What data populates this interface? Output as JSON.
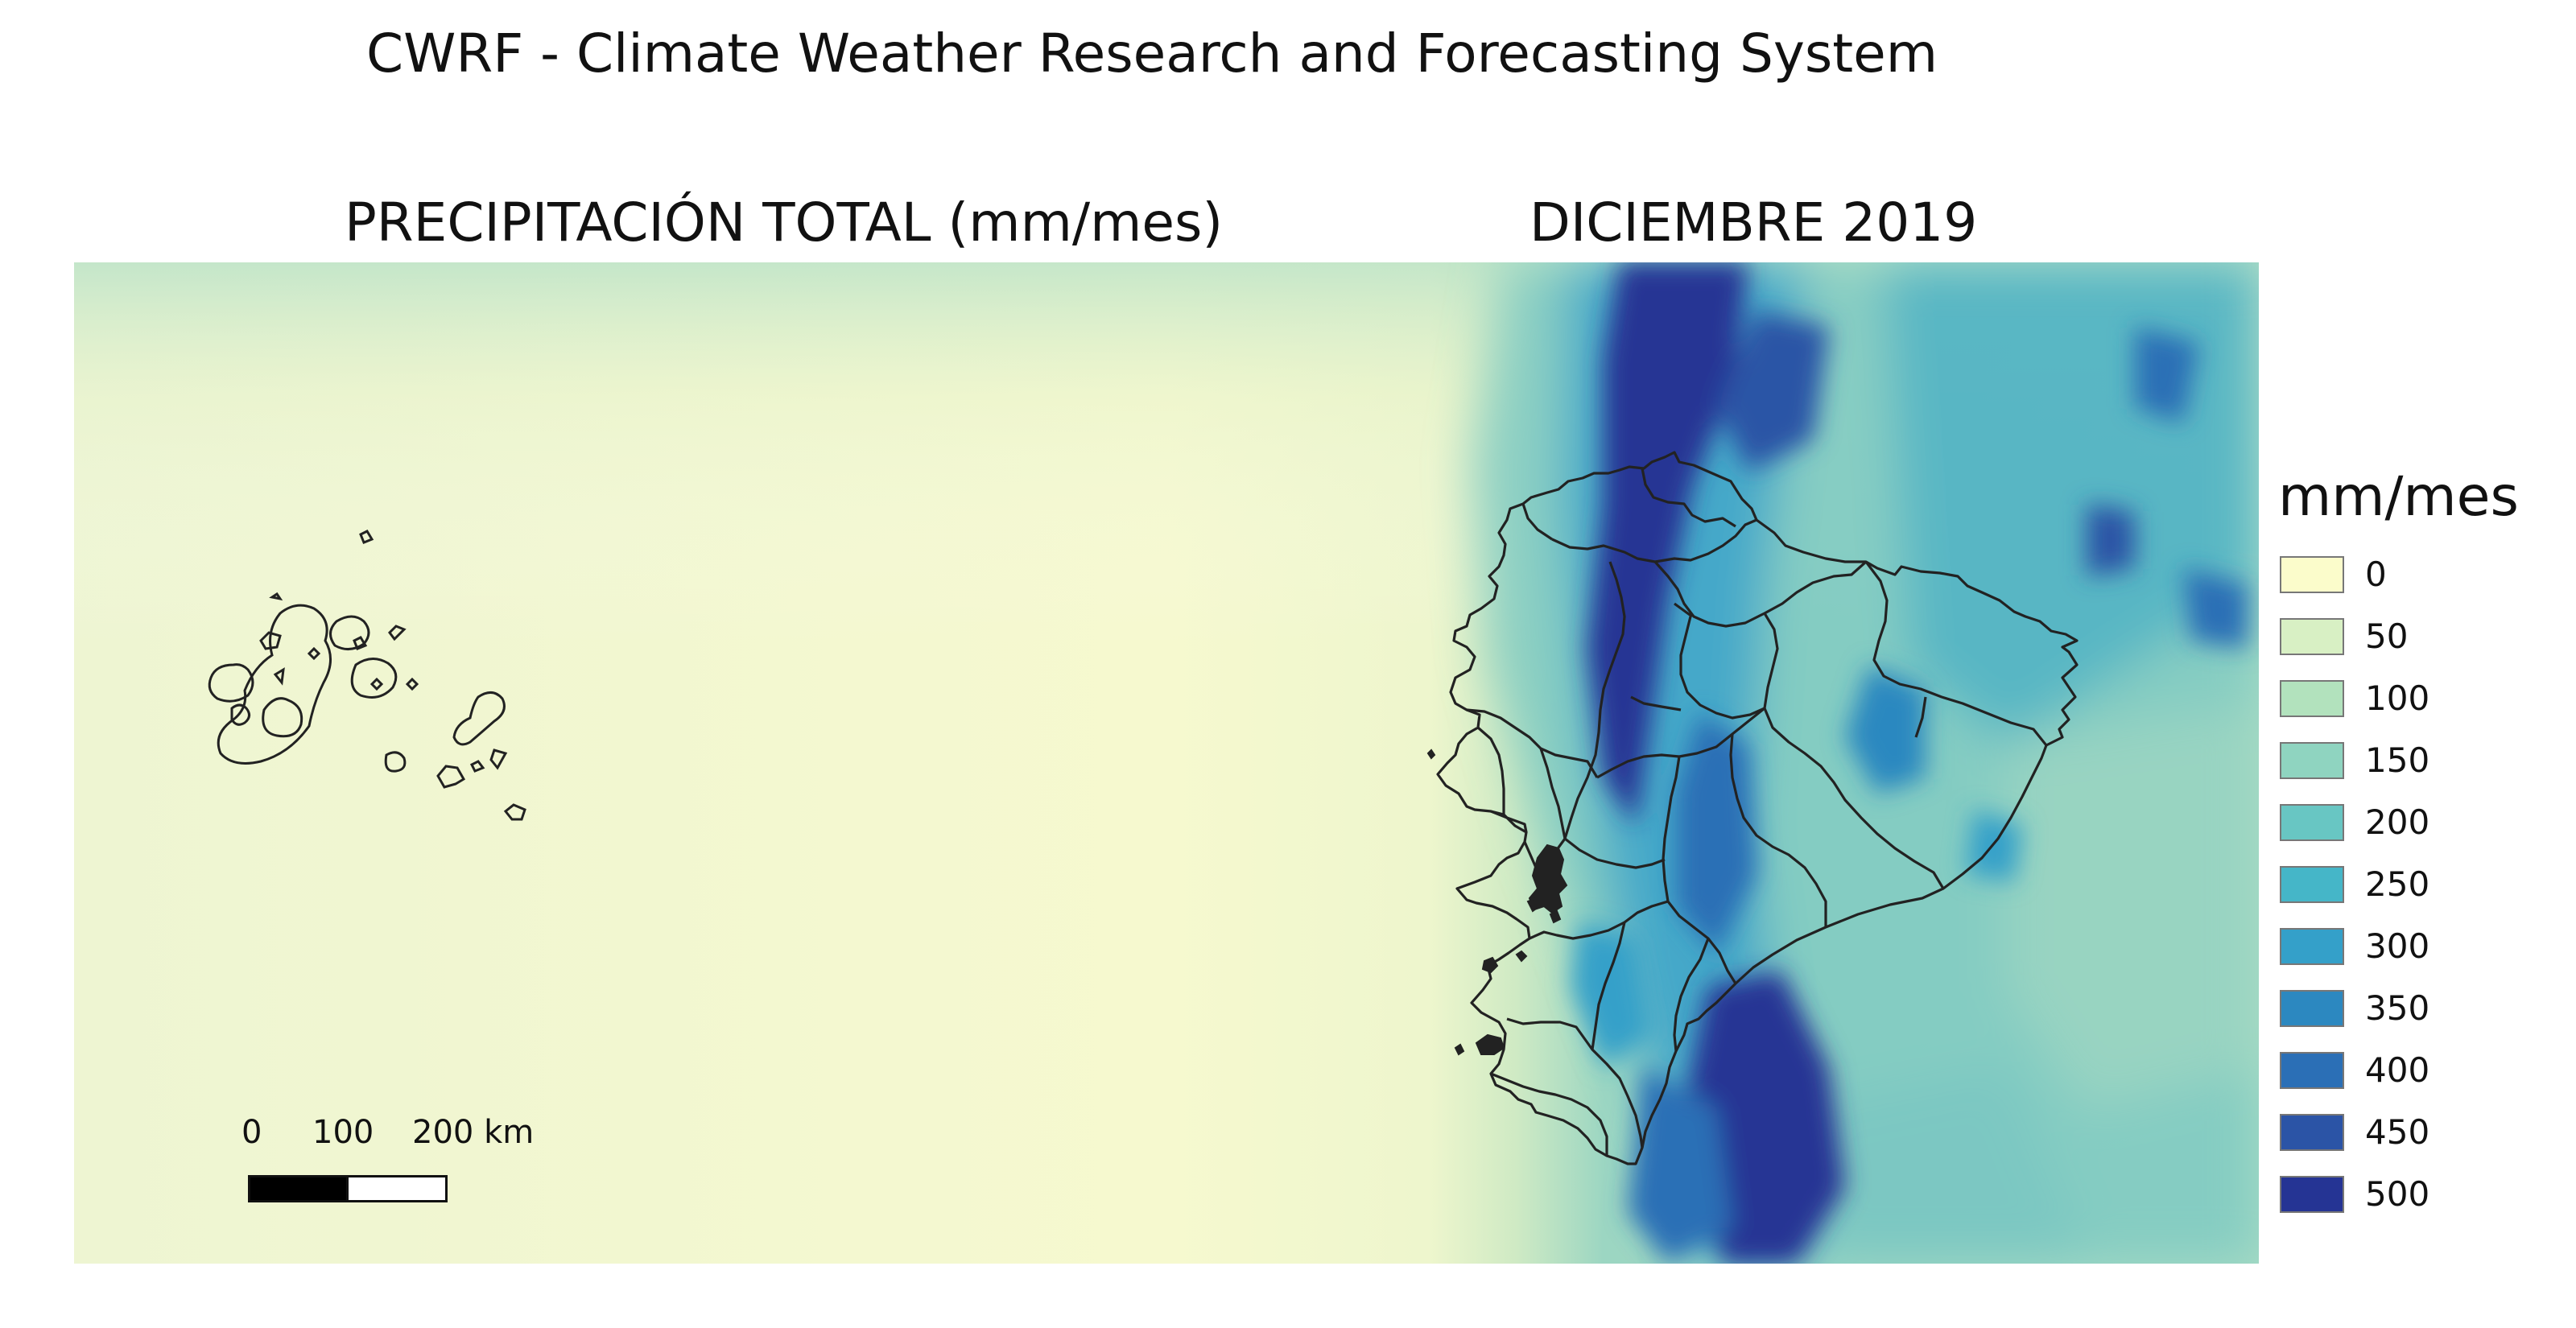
{
  "title": "CWRF - Climate Weather Research and Forecasting System",
  "subtitle_left": "PRECIPITACIÓN TOTAL (mm/mes)",
  "subtitle_right": "DICIEMBRE 2019",
  "legend": {
    "title": "mm/mes",
    "items": [
      {
        "label": "0",
        "color": "#fbfccb"
      },
      {
        "label": "50",
        "color": "#d8f0c4"
      },
      {
        "label": "100",
        "color": "#b2e2bd"
      },
      {
        "label": "150",
        "color": "#8fd4c0"
      },
      {
        "label": "200",
        "color": "#68c6c3"
      },
      {
        "label": "250",
        "color": "#45b6c8"
      },
      {
        "label": "300",
        "color": "#34a0c9"
      },
      {
        "label": "350",
        "color": "#2c88c0"
      },
      {
        "label": "400",
        "color": "#2b6fb6"
      },
      {
        "label": "450",
        "color": "#2b54a6"
      },
      {
        "label": "500",
        "color": "#253494"
      }
    ]
  },
  "scale_bar": {
    "labels": [
      "0",
      "100",
      "200 km"
    ],
    "colors": [
      "#000000",
      "#ffffff"
    ]
  },
  "map": {
    "features": [
      "galapagos-islands",
      "ecuador-mainland-provinces"
    ],
    "background_color": "#f4f8d4"
  }
}
